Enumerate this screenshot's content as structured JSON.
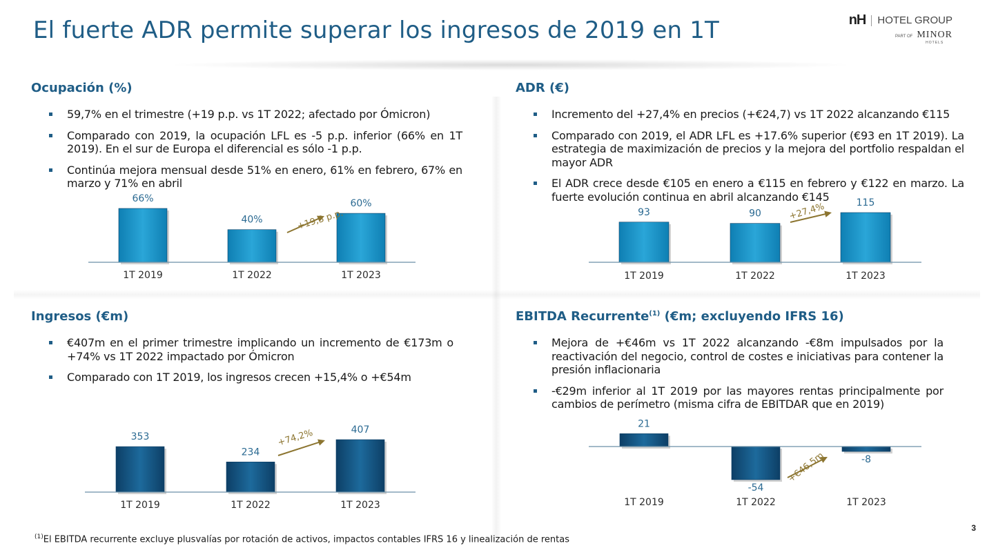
{
  "title": "El fuerte ADR permite superar los ingresos de 2019 en 1T",
  "logo": {
    "brand": "nH",
    "group": "HOTEL GROUP",
    "part_of": "PART OF",
    "minor": "MINOR",
    "hotels": "HOTELS"
  },
  "colors": {
    "title": "#1f5d86",
    "light_bar": "#1590c4",
    "dark_bar": "#124f7e",
    "arrow": "#8c7530",
    "label": "#2b6a92"
  },
  "quadrants": {
    "ocupacion": {
      "heading": "Ocupación (%)",
      "bullets": [
        "59,7% en el trimestre (+19 p.p. vs 1T 2022; afectado por Ómicron)",
        "Comparado con 2019, la ocupación LFL es -5 p.p. inferior (66% en 1T 2019). En el sur de Europa el diferencial es sólo -1 p.p.",
        "Continúa mejora mensual desde 51% en enero, 61% en febrero, 67% en marzo y 71% en abril"
      ]
    },
    "adr": {
      "heading": "ADR (€)",
      "bullets": [
        "Incremento del +27,4% en precios (+€24,7) vs 1T 2022 alcanzando €115",
        "Comparado con 2019, el ADR LFL es +17.6% superior (€93 en 1T 2019). La estrategia de maximización de precios y la mejora del portfolio respaldan el mayor ADR",
        "El ADR crece desde €105 en enero a €115 en febrero y €122 en marzo. La fuerte evolución continua en abril alcanzando €145"
      ]
    },
    "ingresos": {
      "heading": "Ingresos (€m)",
      "bullets": [
        "€407m en el primer trimestre implicando un incremento de €173m o +74% vs 1T 2022 impactado por Ómicron",
        "Comparado con 1T 2019, los ingresos crecen +15,4% o +€54m"
      ]
    },
    "ebitda": {
      "heading": "EBITDA Recurrente",
      "heading_sup": "(1)",
      "heading_rest": " (€m; excluyendo IFRS 16)",
      "bullets": [
        "Mejora de +€46m vs 1T 2022 alcanzando -€8m impulsados por la reactivación del negocio, control de costes e iniciativas para contener la presión inflacionaria",
        "-€29m inferior al 1T 2019 por las mayores rentas principalmente por cambios de perímetro (misma cifra de EBITDAR que en 2019)"
      ]
    }
  },
  "chart_data": [
    {
      "id": "ocupacion",
      "type": "bar",
      "categories": [
        "1T 2019",
        "1T 2022",
        "1T 2023"
      ],
      "values": [
        66,
        40,
        60
      ],
      "value_labels": [
        "66%",
        "40%",
        "60%"
      ],
      "annotation": "+19,3 p.p.",
      "ylim": [
        0,
        66
      ]
    },
    {
      "id": "adr",
      "type": "bar",
      "categories": [
        "1T 2019",
        "1T 2022",
        "1T 2023"
      ],
      "values": [
        93,
        90,
        115
      ],
      "value_labels": [
        "93",
        "90",
        "115"
      ],
      "annotation": "+27,4%",
      "ylim": [
        0,
        115
      ]
    },
    {
      "id": "ingresos",
      "type": "bar",
      "categories": [
        "1T 2019",
        "1T 2022",
        "1T 2023"
      ],
      "values": [
        353,
        234,
        407
      ],
      "value_labels": [
        "353",
        "234",
        "407"
      ],
      "annotation": "+74,2%",
      "ylim": [
        0,
        407
      ]
    },
    {
      "id": "ebitda",
      "type": "bar",
      "categories": [
        "1T 2019",
        "1T 2022",
        "1T 2023"
      ],
      "values": [
        21,
        -54,
        -8
      ],
      "value_labels": [
        "21",
        "-54",
        "-8"
      ],
      "annotation": "+€46,5m",
      "ylim": [
        -54,
        21
      ]
    }
  ],
  "footnote": {
    "sup": "(1)",
    "text": "El  EBITDA recurrente excluye plusvalías por rotación de activos, impactos contables IFRS 16 y linealización de rentas"
  },
  "page_number": "3"
}
